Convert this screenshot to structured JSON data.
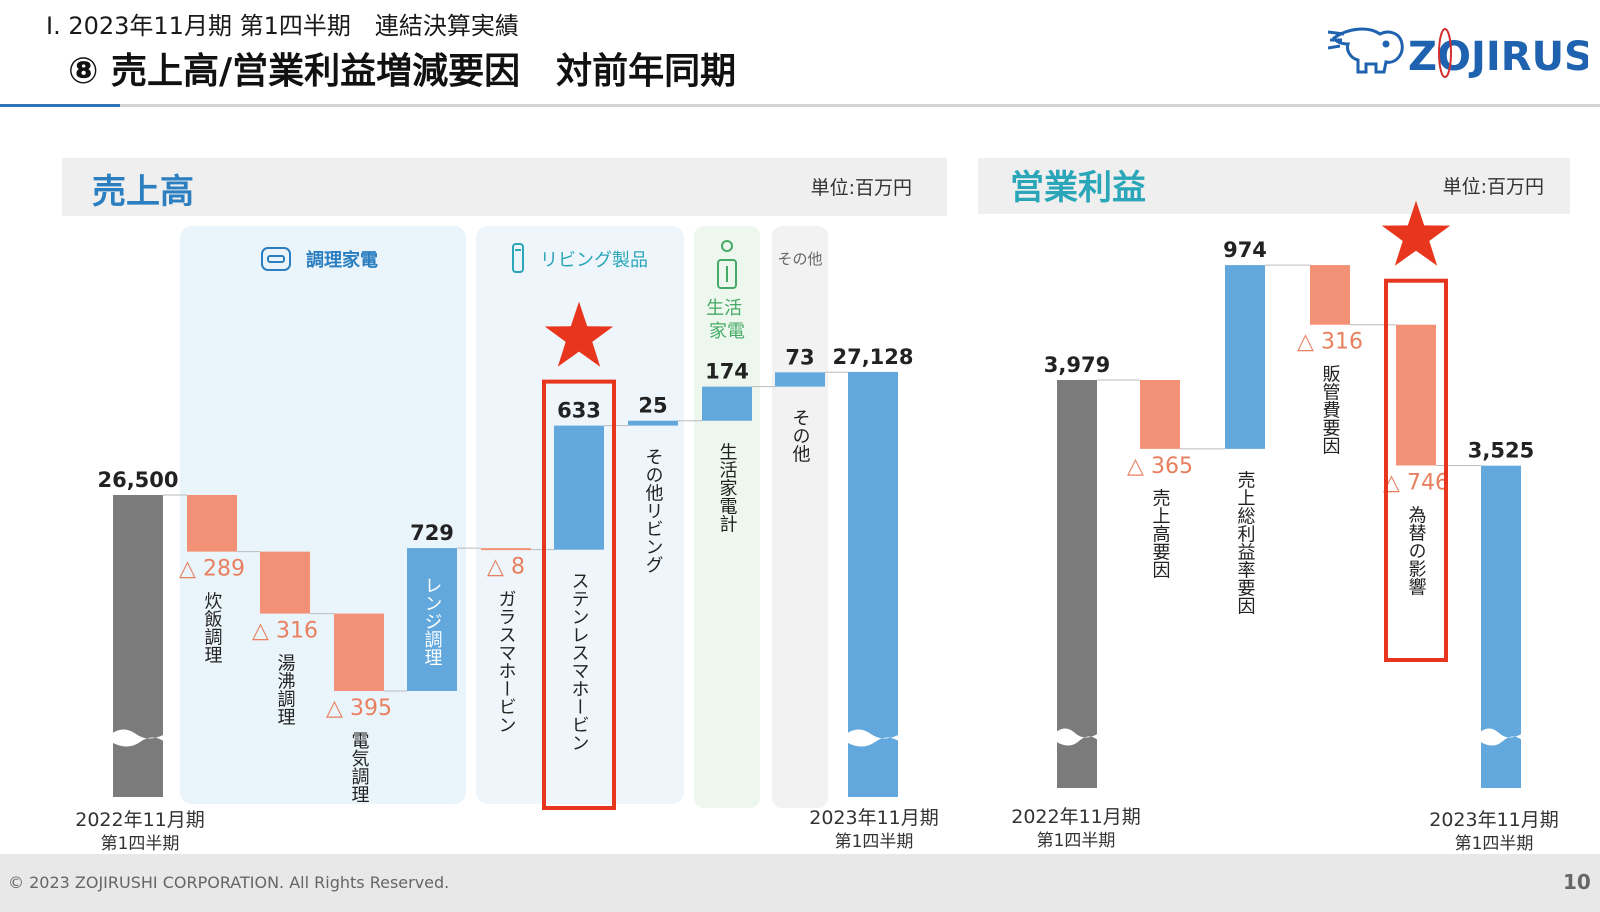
{
  "header": {
    "subtitle": "Ⅰ. 2023年11月期 第1四半期　連結決算実績",
    "title": "⑧ 売上高/営業利益増減要因　対前年同期",
    "logo_text": "ZOJIRUSHI"
  },
  "footer": {
    "copyright": "© 2023 ZOJIRUSHI CORPORATION. All Rights Reserved.",
    "page_number": "10"
  },
  "colors": {
    "gray": "#7b7b7b",
    "blue": "#62a8dc",
    "salmon": "#f29175",
    "negative_text": "#e8805f",
    "highlight": "#e8361e",
    "sales_title": "#2b7fc0",
    "profit_title": "#2aa6b8",
    "green": "#44aa66"
  },
  "left_panel": {
    "title": "売上高",
    "unit": "単位:百万円",
    "groups": [
      {
        "name": "調理家電",
        "icon": "rice-cooker-icon"
      },
      {
        "name": "リビング製品",
        "icon": "bottle-icon"
      },
      {
        "name": "生活\n家電",
        "icon": "humidifier-icon"
      },
      {
        "name": "その他",
        "icon": ""
      }
    ],
    "start_label": [
      "2022年11月期",
      "第1四半期"
    ],
    "end_label": [
      "2023年11月期",
      "第1四半期"
    ]
  },
  "right_panel": {
    "title": "営業利益",
    "unit": "単位:百万円",
    "start_label": [
      "2022年11月期",
      "第1四半期"
    ],
    "end_label": [
      "2023年11月期",
      "第1四半期"
    ]
  },
  "chart_data": [
    {
      "type": "bar",
      "subtype": "waterfall",
      "title": "売上高",
      "unit": "単位:百万円",
      "bars": [
        {
          "category": "2022年11月期 第1四半期",
          "label": "",
          "value": 26500,
          "display": "26,500",
          "kind": "total",
          "axis_break": true
        },
        {
          "category": "炊飯調理",
          "label": "炊飯調理",
          "value": -289,
          "display": "△ 289",
          "kind": "decrease"
        },
        {
          "category": "湯沸調理",
          "label": "湯沸調理",
          "value": -316,
          "display": "△ 316",
          "kind": "decrease"
        },
        {
          "category": "電気調理",
          "label": "電気調理",
          "value": -395,
          "display": "△ 395",
          "kind": "decrease"
        },
        {
          "category": "レンジ調理",
          "label": "レンジ調理",
          "value": 729,
          "display": "729",
          "kind": "increase",
          "label_inside": true
        },
        {
          "category": "ガラスマホービン",
          "label": "ガラスマホービン",
          "value": -8,
          "display": "△ 8",
          "kind": "decrease"
        },
        {
          "category": "ステンレスマホービン",
          "label": "ステンレスマホービン",
          "value": 633,
          "display": "633",
          "kind": "increase",
          "highlight": true
        },
        {
          "category": "その他リビング",
          "label": "その他リビング",
          "value": 25,
          "display": "25",
          "kind": "increase"
        },
        {
          "category": "生活家電計",
          "label": "生活家電計",
          "value": 174,
          "display": "174",
          "kind": "increase"
        },
        {
          "category": "その他",
          "label": "その他",
          "value": 73,
          "display": "73",
          "kind": "increase"
        },
        {
          "category": "2023年11月期 第1四半期",
          "label": "",
          "value": 27128,
          "display": "27,128",
          "kind": "total",
          "axis_break": true
        }
      ]
    },
    {
      "type": "bar",
      "subtype": "waterfall",
      "title": "営業利益",
      "unit": "単位:百万円",
      "bars": [
        {
          "category": "2022年11月期 第1四半期",
          "label": "",
          "value": 3979,
          "display": "3,979",
          "kind": "total",
          "axis_break": true
        },
        {
          "category": "売上高要因",
          "label": "売上高要因",
          "value": -365,
          "display": "△ 365",
          "kind": "decrease"
        },
        {
          "category": "売上総利益率要因",
          "label": "売上総利益率要因",
          "value": 974,
          "display": "974",
          "kind": "increase"
        },
        {
          "category": "販管費要因",
          "label": "販管費要因",
          "value": -316,
          "display": "△ 316",
          "kind": "decrease"
        },
        {
          "category": "為替の影響",
          "label": "為替の影響",
          "value": -746,
          "display": "△ 746",
          "kind": "decrease",
          "highlight": true
        },
        {
          "category": "2023年11月期 第1四半期",
          "label": "",
          "value": 3525,
          "display": "3,525",
          "kind": "total",
          "axis_break": true
        }
      ]
    }
  ]
}
